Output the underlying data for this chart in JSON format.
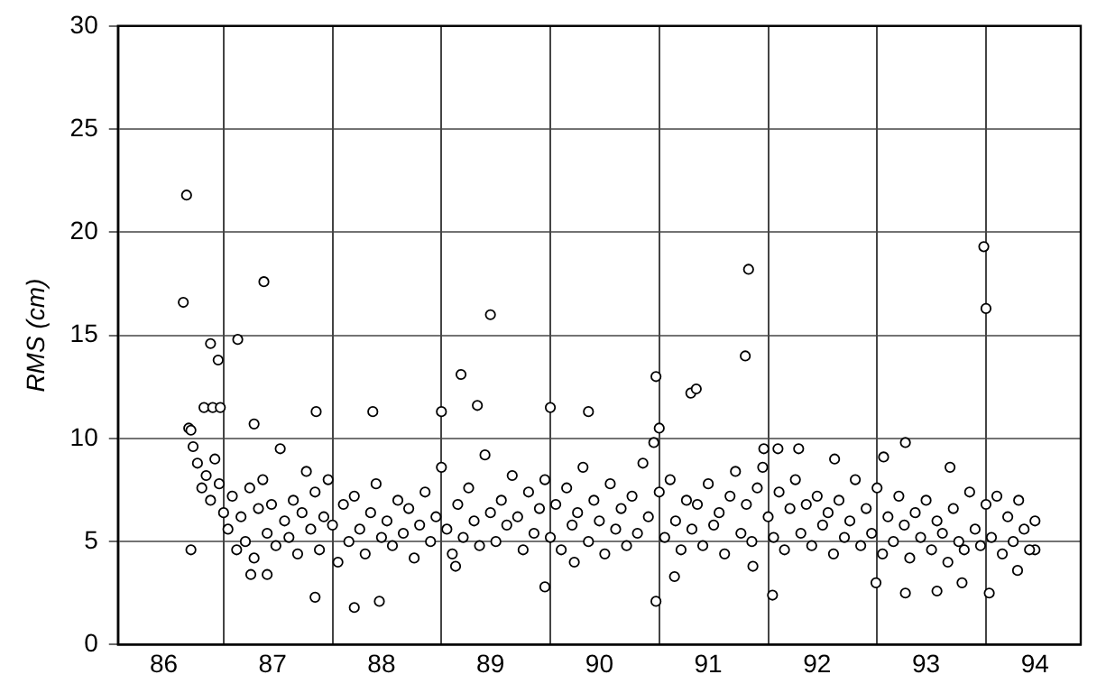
{
  "chart_data": {
    "type": "scatter",
    "ylabel": "RMS (cm)",
    "xlim": [
      85.58,
      94.42
    ],
    "ylim": [
      0,
      30
    ],
    "yticks": [
      0,
      5,
      10,
      15,
      20,
      25,
      30
    ],
    "xticks": [
      86,
      {
        "value": 86.55,
        "label": null
      },
      87,
      {
        "value": 87.55,
        "label": null
      },
      88,
      {
        "value": 88.55,
        "label": null
      },
      89,
      {
        "value": 89.55,
        "label": null
      },
      90,
      {
        "value": 90.55,
        "label": null
      },
      91,
      {
        "value": 91.55,
        "label": null
      },
      92,
      {
        "value": 92.55,
        "label": null
      },
      93,
      {
        "value": 93.55,
        "label": null
      },
      94
    ],
    "grid": true,
    "marker": "circle",
    "legend": false,
    "series": [
      {
        "color": "#000000",
        "x": [
          86.21,
          86.18,
          86.92,
          86.43,
          86.68,
          86.5,
          86.37,
          86.45,
          86.52,
          86.23,
          86.25,
          86.83,
          87.4,
          87.92,
          88.55,
          86.25,
          87.39,
          87.75,
          87.98,
          86.8,
          86.95,
          89.0,
          88.73,
          88.88,
          89.55,
          89.9,
          90.52,
          90.55,
          90.84,
          90.89,
          91.37,
          91.34,
          89.5,
          90.52,
          88.68,
          89.77,
          90.69,
          93.53,
          93.55,
          92.81,
          91.51,
          91.64,
          91.83,
          92.16,
          92.61,
          93.22,
          91.59,
          92.81,
          93.1,
          93.58,
          92.54,
          93.33,
          93.84,
          94.0,
          91.41,
          86.27,
          86.31,
          86.35,
          86.39,
          86.43,
          86.47,
          86.51,
          86.55,
          86.59,
          86.63,
          86.67,
          86.71,
          86.75,
          86.79,
          86.83,
          86.87,
          86.91,
          86.95,
          86.99,
          87.03,
          87.07,
          87.11,
          87.15,
          87.19,
          87.23,
          87.27,
          87.31,
          87.35,
          87.39,
          87.43,
          87.47,
          87.51,
          87.55,
          87.6,
          87.65,
          87.7,
          87.75,
          87.8,
          87.85,
          87.9,
          87.95,
          88.0,
          88.05,
          88.1,
          88.15,
          88.2,
          88.25,
          88.3,
          88.35,
          88.4,
          88.45,
          88.5,
          88.55,
          88.6,
          88.65,
          88.7,
          88.75,
          88.8,
          88.85,
          88.9,
          88.95,
          89.0,
          89.05,
          89.1,
          89.15,
          89.2,
          89.25,
          89.3,
          89.35,
          89.4,
          89.45,
          89.5,
          89.55,
          89.6,
          89.65,
          89.7,
          89.75,
          89.8,
          89.85,
          89.9,
          89.95,
          90.0,
          90.05,
          90.1,
          90.15,
          90.2,
          90.25,
          90.3,
          90.35,
          90.4,
          90.45,
          90.5,
          90.55,
          90.6,
          90.65,
          90.7,
          90.75,
          90.8,
          90.85,
          90.9,
          90.95,
          91.0,
          91.05,
          91.1,
          91.15,
          91.2,
          91.25,
          91.3,
          91.35,
          91.4,
          91.45,
          91.5,
          91.55,
          91.6,
          91.65,
          91.7,
          91.75,
          91.8,
          91.85,
          91.9,
          91.95,
          92.0,
          92.05,
          92.1,
          92.15,
          92.2,
          92.25,
          92.3,
          92.35,
          92.4,
          92.45,
          92.5,
          92.55,
          92.6,
          92.65,
          92.7,
          92.75,
          92.8,
          92.85,
          92.9,
          92.95,
          93.0,
          93.05,
          93.1,
          93.15,
          93.2,
          93.25,
          93.3,
          93.35,
          93.4,
          93.45,
          93.5,
          93.55,
          93.6,
          93.65,
          93.7,
          93.75,
          93.8,
          93.85,
          93.9,
          93.95,
          94.0
        ],
        "values": [
          21.8,
          16.6,
          17.6,
          14.6,
          14.8,
          13.8,
          11.5,
          11.5,
          11.5,
          10.5,
          10.4,
          10.7,
          11.3,
          11.3,
          11.3,
          4.6,
          2.3,
          1.8,
          2.1,
          3.4,
          3.4,
          16.0,
          13.1,
          11.6,
          11.5,
          11.3,
          13.0,
          10.5,
          12.2,
          12.4,
          18.2,
          14.0,
          2.8,
          2.1,
          3.8,
          4.0,
          3.3,
          19.3,
          16.3,
          9.8,
          9.5,
          9.5,
          9.5,
          9.0,
          9.1,
          8.6,
          2.4,
          2.5,
          2.6,
          2.5,
          3.0,
          3.0,
          3.6,
          4.6,
          3.8,
          9.6,
          8.8,
          7.6,
          8.2,
          7.0,
          9.0,
          7.8,
          6.4,
          5.6,
          7.2,
          4.6,
          6.2,
          5.0,
          7.6,
          4.2,
          6.6,
          8.0,
          5.4,
          6.8,
          4.8,
          9.5,
          6.0,
          5.2,
          7.0,
          4.4,
          6.4,
          8.4,
          5.6,
          7.4,
          4.6,
          6.2,
          8.0,
          5.8,
          4.0,
          6.8,
          5.0,
          7.2,
          5.6,
          4.4,
          6.4,
          7.8,
          5.2,
          6.0,
          4.8,
          7.0,
          5.4,
          6.6,
          4.2,
          5.8,
          7.4,
          5.0,
          6.2,
          8.6,
          5.6,
          4.4,
          6.8,
          5.2,
          7.6,
          6.0,
          4.8,
          9.2,
          6.4,
          5.0,
          7.0,
          5.8,
          8.2,
          6.2,
          4.6,
          7.4,
          5.4,
          6.6,
          8.0,
          5.2,
          6.8,
          4.6,
          7.6,
          5.8,
          6.4,
          8.6,
          5.0,
          7.0,
          6.0,
          4.4,
          7.8,
          5.6,
          6.6,
          4.8,
          7.2,
          5.4,
          8.8,
          6.2,
          9.8,
          7.4,
          5.2,
          8.0,
          6.0,
          4.6,
          7.0,
          5.6,
          6.8,
          4.8,
          7.8,
          5.8,
          6.4,
          4.4,
          7.2,
          8.4,
          5.4,
          6.8,
          5.0,
          7.6,
          8.6,
          6.2,
          5.2,
          7.4,
          4.6,
          6.6,
          8.0,
          5.4,
          6.8,
          4.8,
          7.2,
          5.8,
          6.4,
          4.4,
          7.0,
          5.2,
          6.0,
          8.0,
          4.8,
          6.6,
          5.4,
          7.6,
          4.4,
          6.2,
          5.0,
          7.2,
          5.8,
          4.2,
          6.4,
          5.2,
          7.0,
          4.6,
          6.0,
          5.4,
          4.0,
          6.6,
          5.0,
          4.6,
          7.4,
          5.6,
          4.8,
          6.8,
          5.2,
          7.2,
          4.4,
          6.2,
          5.0,
          7.0,
          5.6,
          4.6,
          6.0
        ]
      }
    ]
  }
}
